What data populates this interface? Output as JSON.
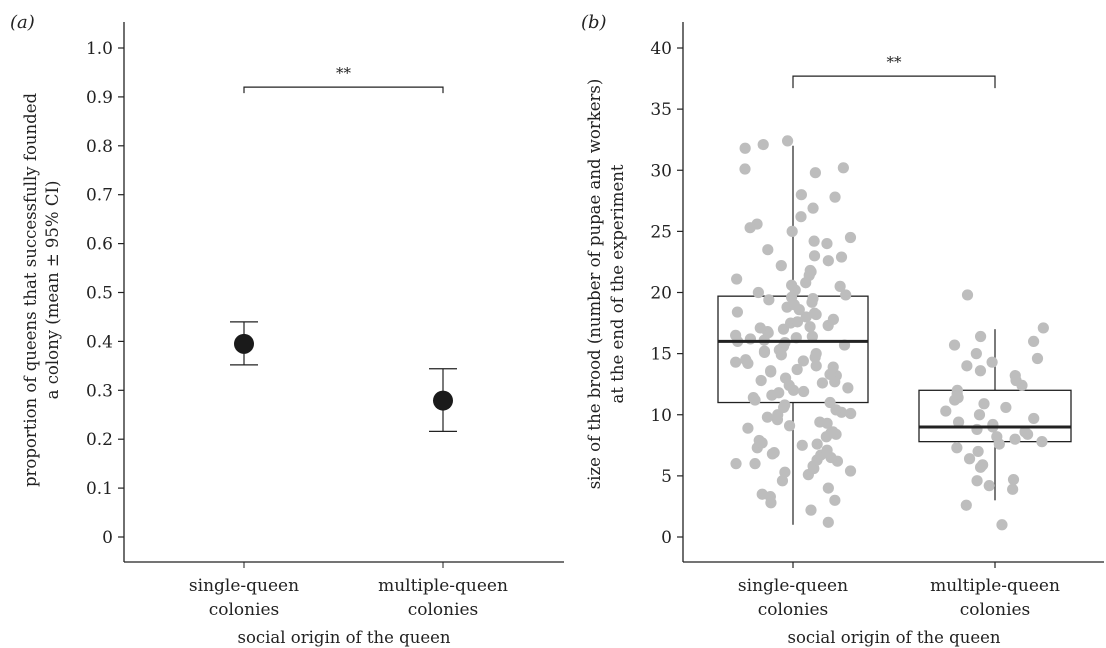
{
  "chart_data": [
    {
      "panel_label": "(a)",
      "type": "scatter",
      "subtype": "point-with-error-bars",
      "xlabel": "social origin of the queen",
      "ylabel_lines": [
        "proportion of queens that successfully founded",
        "a colony (mean ± 95% CI)"
      ],
      "categories": [
        [
          "single-queen",
          "colonies"
        ],
        [
          "multiple-queen",
          "colonies"
        ]
      ],
      "ylim": [
        0,
        1.0
      ],
      "yticks": [
        "0",
        "0.1",
        "0.2",
        "0.3",
        "0.4",
        "0.5",
        "0.6",
        "0.7",
        "0.8",
        "0.9",
        "1.0"
      ],
      "values": [
        0.395,
        0.279
      ],
      "ci_low": [
        0.352,
        0.216
      ],
      "ci_high": [
        0.44,
        0.344
      ],
      "significance": {
        "label": "**",
        "y": 0.92
      },
      "point_color": "#1a1a1a",
      "grid": false
    },
    {
      "panel_label": "(b)",
      "type": "box",
      "subtype": "boxplot-with-jittered-points",
      "xlabel": "social origin of the queen",
      "ylabel_lines": [
        "size of the brood (number of pupae and workers)",
        "at the end of the experiment"
      ],
      "categories": [
        [
          "single-queen",
          "colonies"
        ],
        [
          "multiple-queen",
          "colonies"
        ]
      ],
      "ylim": [
        0,
        40
      ],
      "yticks": [
        "0",
        "5",
        "10",
        "15",
        "20",
        "25",
        "30",
        "35",
        "40"
      ],
      "boxes": [
        {
          "min": 1,
          "q1": 11,
          "median": 16,
          "q3": 19.7,
          "max": 32
        },
        {
          "min": 3,
          "q1": 7.8,
          "median": 9,
          "q3": 12,
          "max": 17
        }
      ],
      "significance": {
        "label": "**",
        "y": 37.7
      },
      "point_color": "#bdbdbd",
      "grid": false,
      "points": [
        [
          2.2,
          3.3,
          5.1,
          5.4,
          5.6,
          5.8,
          6.0,
          6.2,
          6.3,
          6.5,
          6.7,
          6.9,
          7.1,
          7.3,
          7.5,
          7.7,
          7.9,
          8.2,
          8.4,
          8.6,
          8.9,
          9.1,
          9.4,
          9.6,
          9.8,
          10.0,
          10.2,
          10.4,
          10.6,
          10.8,
          11.0,
          11.2,
          11.4,
          11.6,
          11.8,
          12.0,
          12.2,
          12.4,
          12.6,
          12.8,
          13.0,
          13.2,
          13.3,
          13.5,
          13.7,
          13.9,
          14.0,
          14.2,
          14.4,
          14.5,
          14.7,
          14.9,
          15.0,
          15.1,
          15.3,
          15.4,
          15.6,
          15.7,
          15.9,
          16.0,
          16.1,
          16.2,
          16.4,
          16.5,
          16.7,
          16.8,
          17.0,
          17.1,
          17.3,
          17.5,
          17.6,
          17.8,
          18.0,
          18.2,
          18.4,
          18.6,
          18.8,
          19.0,
          19.2,
          19.4,
          19.6,
          19.8,
          20.0,
          20.2,
          20.5,
          20.8,
          21.1,
          21.4,
          21.8,
          22.2,
          22.6,
          23.0,
          23.5,
          24.0,
          24.5,
          25.0,
          25.6,
          26.2,
          26.9,
          27.8,
          28.0,
          29.8,
          30.1,
          30.2,
          31.8,
          32.1,
          32.4,
          1.2,
          2.8,
          3.0,
          3.5,
          4.0,
          4.6,
          5.3,
          6.0,
          6.8,
          7.6,
          8.5,
          9.3,
          10.1,
          11.9,
          12.7,
          13.6,
          14.3,
          15.2,
          16.3,
          17.2,
          18.3,
          19.5,
          20.6,
          21.7,
          22.9,
          24.2,
          25.3
        ],
        [
          1.0,
          2.6,
          3.9,
          4.2,
          4.6,
          4.7,
          5.7,
          5.9,
          6.4,
          7.0,
          7.3,
          7.6,
          7.8,
          8.0,
          8.2,
          8.4,
          8.6,
          8.8,
          9.0,
          9.2,
          9.4,
          9.7,
          10.0,
          10.3,
          10.6,
          10.9,
          11.2,
          11.4,
          11.7,
          12.0,
          12.4,
          12.8,
          13.2,
          13.6,
          14.0,
          14.3,
          14.6,
          15.0,
          15.7,
          16.0,
          16.4,
          17.1,
          19.8
        ]
      ]
    }
  ]
}
